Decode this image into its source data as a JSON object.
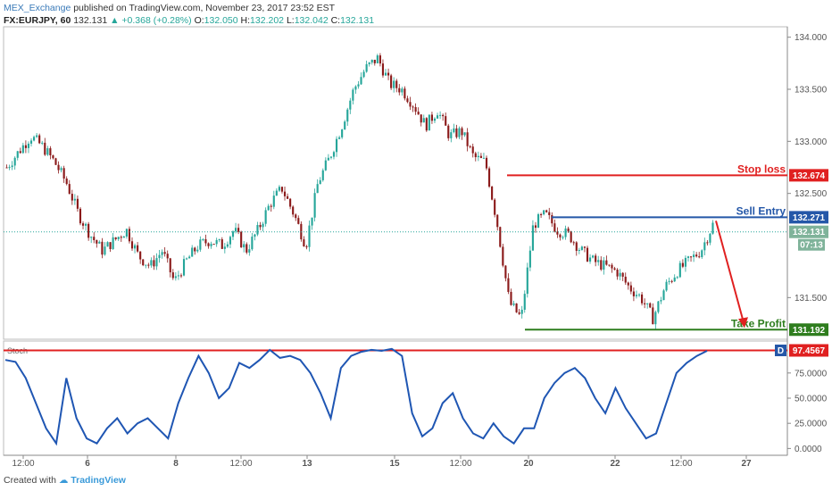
{
  "header": {
    "author": "MEX_Exchange",
    "published_text": "published on TradingView.com, November 23, 2017 23:52 EST",
    "symbol": "FX:EURJPY, 60",
    "last": "132.131",
    "change": "▲ +0.368 (+0.28%)",
    "o_label": "O:",
    "o_value": "132.050",
    "h_label": "H:",
    "h_value": "132.202",
    "l_label": "L:",
    "l_value": "132.042",
    "c_label": "C:",
    "c_value": "132.131"
  },
  "footer": {
    "created_with": "Created with",
    "brand": "TradingView"
  },
  "colors": {
    "up": "#26a69a",
    "down": "#8b1a1a",
    "red": "#e02020",
    "blue": "#2457a8",
    "green": "#2e7d1e",
    "stoch": "#1f56b3"
  },
  "chart_data": [
    {
      "type": "candlestick",
      "symbol": "FX:EURJPY",
      "interval": "60",
      "y_axis_labels": [
        "134.000",
        "133.500",
        "133.000",
        "132.500",
        "131.500"
      ],
      "ylim": [
        131.1,
        134.1
      ],
      "x_tick_labels": [
        "12:00",
        "6",
        "8",
        "12:00",
        "13",
        "15",
        "12:00",
        "20",
        "22",
        "12:00",
        "27"
      ],
      "price_path": [
        132.75,
        132.9,
        133.05,
        132.95,
        132.8,
        132.6,
        132.3,
        132.1,
        131.95,
        132.05,
        132.15,
        131.9,
        131.8,
        131.95,
        131.65,
        131.85,
        132.0,
        132.05,
        132.0,
        132.15,
        131.95,
        132.15,
        132.4,
        132.55,
        132.3,
        132.0,
        132.6,
        132.85,
        133.15,
        133.5,
        133.7,
        133.8,
        133.55,
        133.5,
        133.35,
        133.15,
        133.3,
        133.05,
        133.1,
        132.85,
        132.8,
        132.2,
        131.45,
        131.3,
        132.2,
        132.3,
        132.15,
        132.1,
        131.95,
        131.85,
        131.8,
        131.75,
        131.6,
        131.5,
        131.3,
        131.6,
        131.75,
        131.85,
        131.95,
        132.2
      ],
      "annotations": {
        "stop_loss": {
          "label": "Stop loss",
          "value": "132.674",
          "price": 132.674
        },
        "sell_entry": {
          "label": "Sell Entry",
          "value": "132.271",
          "price": 132.271
        },
        "take_profit": {
          "label": "Take Profit",
          "value": "131.192",
          "price": 131.192
        },
        "current_price": {
          "value": "132.131",
          "price": 132.131,
          "countdown": "07:13"
        }
      }
    },
    {
      "type": "line",
      "name": "Stoch",
      "ylim": [
        -5,
        105
      ],
      "y_axis_labels": [
        "75.0000",
        "50.0000",
        "25.0000",
        "0.0000"
      ],
      "level_line": 97.4567,
      "level_label": "97.4567",
      "marker": "D",
      "values": [
        88,
        86,
        70,
        45,
        20,
        5,
        70,
        30,
        10,
        5,
        20,
        30,
        15,
        25,
        30,
        20,
        10,
        45,
        70,
        92,
        75,
        50,
        60,
        85,
        80,
        88,
        98,
        90,
        92,
        88,
        75,
        55,
        30,
        80,
        92,
        96,
        98,
        97,
        99,
        92,
        35,
        12,
        20,
        45,
        55,
        30,
        15,
        10,
        25,
        12,
        5,
        20,
        20,
        50,
        65,
        75,
        80,
        70,
        50,
        35,
        60,
        40,
        25,
        10,
        15,
        45,
        75,
        85,
        92,
        97
      ]
    }
  ]
}
